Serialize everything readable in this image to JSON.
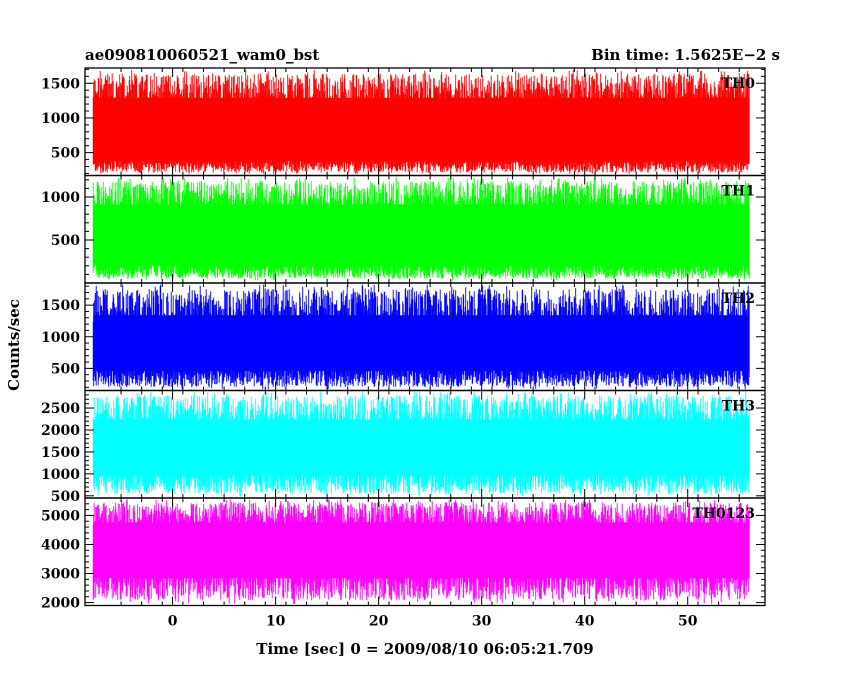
{
  "chart_data": {
    "type": "line",
    "title_left": "ae090810060521_wam0_bst",
    "title_right": "Bin time: 1.5625E−2 s",
    "xlabel": "Time [sec] 0 = 2009/08/10 06:05:21.709",
    "ylabel": "Counts/sec",
    "xlim": [
      -8.5,
      57.5
    ],
    "x_range": [
      -7.7,
      56.0
    ],
    "xticks": [
      0,
      10,
      20,
      30,
      40,
      50
    ],
    "grid": false,
    "panels": [
      {
        "name": "TH0",
        "color": "#ff0000",
        "ylim": [
          170,
          1720
        ],
        "yticks": [
          500,
          1000,
          1500
        ],
        "series": {
          "low": 300,
          "high": 1400,
          "min": 190,
          "max": 1700,
          "mean": 850
        }
      },
      {
        "name": "TH1",
        "color": "#00ff00",
        "ylim": [
          0,
          1250
        ],
        "yticks": [
          500,
          1000
        ],
        "series": {
          "low": 130,
          "high": 1000,
          "min": 30,
          "max": 1230,
          "mean": 550
        }
      },
      {
        "name": "TH2",
        "color": "#0000ff",
        "ylim": [
          150,
          1850
        ],
        "yticks": [
          500,
          1000,
          1500
        ],
        "series": {
          "low": 350,
          "high": 1450,
          "min": 170,
          "max": 1830,
          "mean": 900
        }
      },
      {
        "name": "TH3",
        "color": "#00ffff",
        "ylim": [
          450,
          2900
        ],
        "yticks": [
          500,
          1000,
          1500,
          2000,
          2500
        ],
        "series": {
          "low": 800,
          "high": 2400,
          "min": 480,
          "max": 2880,
          "mean": 1600
        }
      },
      {
        "name": "TH0123",
        "color": "#ff00ff",
        "ylim": [
          1900,
          5600
        ],
        "yticks": [
          2000,
          3000,
          4000,
          5000
        ],
        "series": {
          "low": 2600,
          "high": 5000,
          "min": 1950,
          "max": 5560,
          "mean": 3800
        }
      }
    ]
  }
}
